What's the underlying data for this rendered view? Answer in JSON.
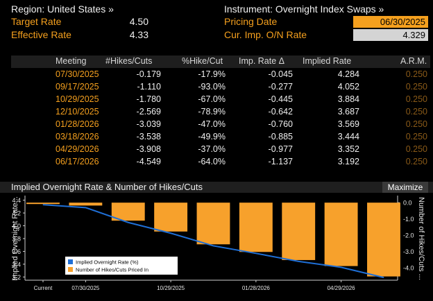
{
  "top": {
    "region_label": "Region: United States »",
    "instrument_label": "Instrument: Overnight Index Swaps »",
    "target_rate_label": "Target Rate",
    "target_rate_value": "4.50",
    "effective_rate_label": "Effective Rate",
    "effective_rate_value": "4.33",
    "pricing_date_label": "Pricing Date",
    "pricing_date_value": "06/30/2025",
    "cur_imp_label": "Cur. Imp. O/N Rate",
    "cur_imp_value": "4.329"
  },
  "table": {
    "headers": [
      "Meeting",
      "#Hikes/Cuts",
      "%Hike/Cut",
      "Imp. Rate Δ",
      "Implied Rate",
      "A.R.M."
    ],
    "rows": [
      [
        "07/30/2025",
        "-0.179",
        "-17.9%",
        "-0.045",
        "4.284",
        "0.250"
      ],
      [
        "09/17/2025",
        "-1.110",
        "-93.0%",
        "-0.277",
        "4.052",
        "0.250"
      ],
      [
        "10/29/2025",
        "-1.780",
        "-67.0%",
        "-0.445",
        "3.884",
        "0.250"
      ],
      [
        "12/10/2025",
        "-2.569",
        "-78.9%",
        "-0.642",
        "3.687",
        "0.250"
      ],
      [
        "01/28/2026",
        "-3.039",
        "-47.0%",
        "-0.760",
        "3.569",
        "0.250"
      ],
      [
        "03/18/2026",
        "-3.538",
        "-49.9%",
        "-0.885",
        "3.444",
        "0.250"
      ],
      [
        "04/29/2026",
        "-3.908",
        "-37.0%",
        "-0.977",
        "3.352",
        "0.250"
      ],
      [
        "06/17/2026",
        "-4.549",
        "-64.0%",
        "-1.137",
        "3.192",
        "0.250"
      ]
    ]
  },
  "panel": {
    "title": "Implied Overnight Rate & Number of Hikes/Cuts",
    "maximize_label": "Maximize"
  },
  "chart_data": {
    "type": "bar",
    "title": "Implied Overnight Rate & Number of Hikes/Cuts",
    "categories": [
      "Current",
      "07/30/2025",
      "09/17/2025",
      "10/29/2025",
      "12/10/2025",
      "01/28/2026",
      "03/18/2026",
      "04/29/2026",
      "06/17/2026"
    ],
    "x_tick_labels": [
      "Current",
      "07/30/2025",
      "10/29/2025",
      "01/28/2026",
      "04/29/2026"
    ],
    "series": [
      {
        "name": "Implied Overnight Rate (%)",
        "type": "line",
        "axis": "left",
        "color": "#1f6fd6",
        "values": [
          4.329,
          4.284,
          4.052,
          3.884,
          3.687,
          3.569,
          3.444,
          3.352,
          3.192
        ]
      },
      {
        "name": "Number of Hikes/Cuts Priced In",
        "type": "bar",
        "axis": "right",
        "color": "#f7a12c",
        "values": [
          0,
          -0.179,
          -1.11,
          -1.78,
          -2.569,
          -3.039,
          -3.538,
          -3.908,
          -4.549
        ]
      }
    ],
    "ylabel_left": "Implied Overnight Rate...",
    "ylabel_right": "Number of Hikes/Cuts ...",
    "ylim_left": [
      3.15,
      4.45
    ],
    "ylim_right": [
      -4.78,
      0.35
    ],
    "yticks_left": [
      "4.4",
      "4.2",
      "4.0",
      "3.8",
      "3.6",
      "3.4",
      "3.2"
    ],
    "yticks_right": [
      "0.0",
      "-1.0",
      "-2.0",
      "-3.0",
      "-4.0"
    ],
    "legend": "bottom-left",
    "grid": false
  }
}
